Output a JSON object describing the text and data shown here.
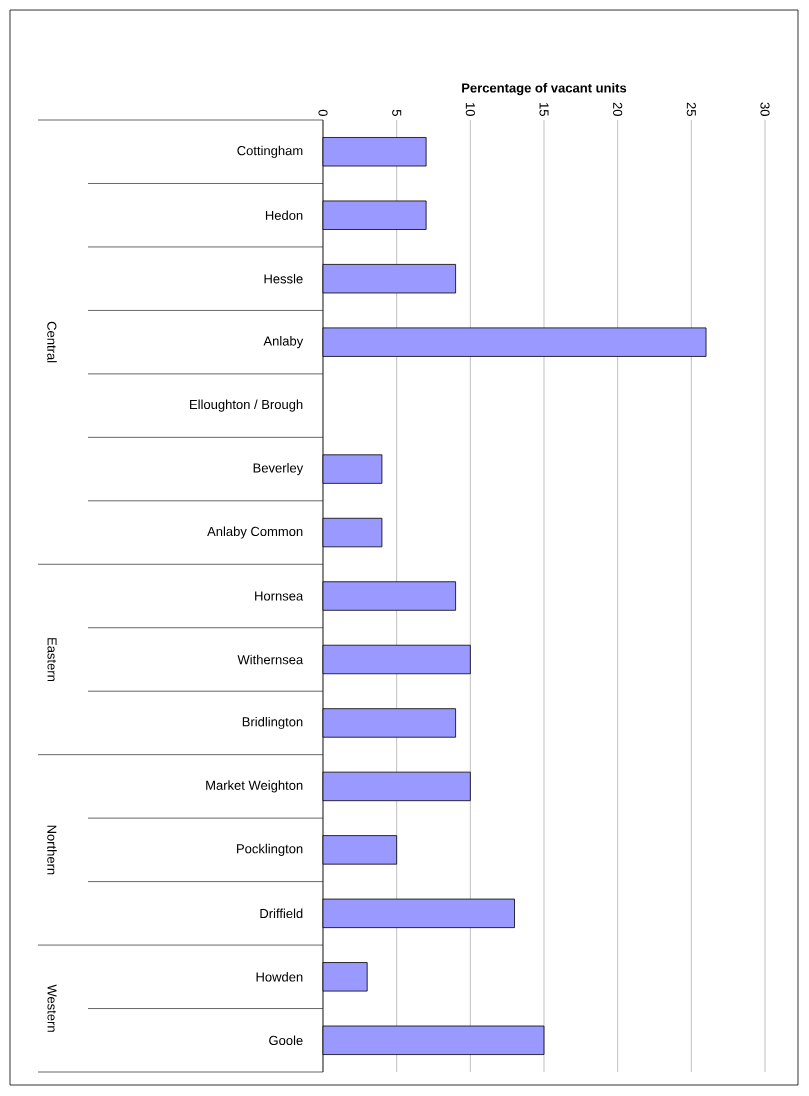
{
  "chart_data": {
    "type": "bar",
    "orientation": "horizontal",
    "xlabel": "Percentage of vacant units",
    "categories": [
      "Cottingham",
      "Hedon",
      "Hessle",
      "Anlaby",
      "Elloughton / Brough",
      "Beverley",
      "Anlaby Common",
      "Hornsea",
      "Withernsea",
      "Bridlington",
      "Market Weighton",
      "Pocklington",
      "Driffield",
      "Howden",
      "Goole"
    ],
    "values": [
      7,
      7,
      9,
      26,
      null,
      4,
      4,
      9,
      10,
      9,
      10,
      5,
      13,
      3,
      15
    ],
    "color": "#9999ff",
    "xlim": [
      0,
      30
    ],
    "xticks": [
      0,
      5,
      10,
      15,
      20,
      25,
      30
    ],
    "grid": "x",
    "annotations": [
      "Central",
      "Eastern",
      "Northern",
      "Western"
    ]
  }
}
